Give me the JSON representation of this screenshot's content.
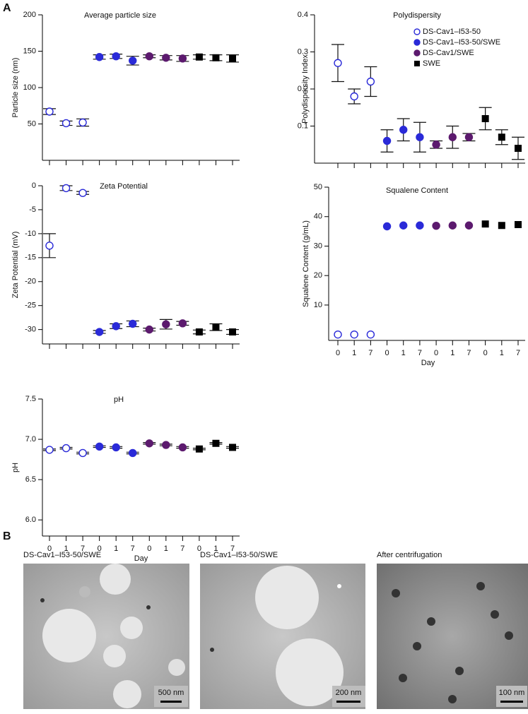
{
  "panel_labels": [
    "A",
    "B"
  ],
  "chart_data": [
    {
      "type": "dot",
      "title": "Average particle size",
      "ylabel": "Particle size (nm)",
      "ylim": [
        0,
        200
      ],
      "yticks": [
        50,
        100,
        150,
        200
      ],
      "series": [
        {
          "color": "#2a2ad8",
          "marker": "open-circle",
          "values": [
            67,
            51,
            52,
            null,
            null,
            null,
            null,
            null,
            null,
            null,
            null,
            null
          ],
          "errors": [
            4,
            3,
            5,
            null,
            null,
            null,
            null,
            null,
            null,
            null,
            null,
            null
          ]
        },
        {
          "color": "#2a2ad8",
          "marker": "circle",
          "values": [
            null,
            null,
            null,
            142,
            143,
            137,
            null,
            null,
            null,
            null,
            null,
            null
          ],
          "errors": [
            null,
            null,
            null,
            3,
            3,
            6,
            null,
            null,
            null,
            null,
            null,
            null
          ]
        },
        {
          "color": "#5c1a6e",
          "marker": "circle",
          "values": [
            null,
            null,
            null,
            null,
            null,
            null,
            143,
            141,
            140,
            null,
            null,
            null
          ],
          "errors": [
            null,
            null,
            null,
            null,
            null,
            null,
            2,
            3,
            4,
            null,
            null,
            null
          ]
        },
        {
          "color": "#000000",
          "marker": "square",
          "values": [
            null,
            null,
            null,
            null,
            null,
            null,
            null,
            null,
            null,
            142,
            141,
            140
          ],
          "errors": [
            null,
            null,
            null,
            null,
            null,
            null,
            null,
            null,
            null,
            3,
            4,
            5
          ]
        }
      ]
    },
    {
      "type": "dot",
      "title": "Polydispersity",
      "ylabel": "Polydispersity Index",
      "ylim": [
        0,
        0.4
      ],
      "yticks": [
        0.1,
        0.2,
        0.3,
        0.4
      ],
      "legend": "upper right",
      "series": [
        {
          "name": "DS-Cav1–I53-50",
          "color": "#2a2ad8",
          "marker": "open-circle",
          "values": [
            0.27,
            0.18,
            0.22,
            null,
            null,
            null,
            null,
            null,
            null,
            null,
            null,
            null
          ],
          "errors": [
            0.05,
            0.02,
            0.04,
            null,
            null,
            null,
            null,
            null,
            null,
            null,
            null,
            null
          ]
        },
        {
          "name": "DS-Cav1–I53-50/SWE",
          "color": "#2a2ad8",
          "marker": "circle",
          "values": [
            null,
            null,
            null,
            0.06,
            0.09,
            0.07,
            null,
            null,
            null,
            null,
            null,
            null
          ],
          "errors": [
            null,
            null,
            null,
            0.03,
            0.03,
            0.04,
            null,
            null,
            null,
            null,
            null,
            null
          ]
        },
        {
          "name": "DS-Cav1/SWE",
          "color": "#5c1a6e",
          "marker": "circle",
          "values": [
            null,
            null,
            null,
            null,
            null,
            null,
            0.05,
            0.07,
            0.07,
            null,
            null,
            null
          ],
          "errors": [
            null,
            null,
            null,
            null,
            null,
            null,
            0.01,
            0.03,
            0.01,
            null,
            null,
            null
          ]
        },
        {
          "name": "SWE",
          "color": "#000000",
          "marker": "square",
          "values": [
            null,
            null,
            null,
            null,
            null,
            null,
            null,
            null,
            null,
            0.12,
            0.07,
            0.04
          ],
          "errors": [
            null,
            null,
            null,
            null,
            null,
            null,
            null,
            null,
            null,
            0.03,
            0.02,
            0.03
          ]
        }
      ]
    },
    {
      "type": "dot",
      "title": "Zeta Potential",
      "ylabel": "Zeta Potential (mV)",
      "ylim": [
        -33,
        0
      ],
      "yticks": [
        0,
        -5,
        -10,
        -15,
        -20,
        -25,
        -30
      ],
      "series": [
        {
          "color": "#2a2ad8",
          "marker": "open-circle",
          "values": [
            -12.5,
            -0.5,
            -1.5,
            null,
            null,
            null,
            null,
            null,
            null,
            null,
            null,
            null
          ],
          "errors": [
            2.5,
            0.5,
            0.3,
            null,
            null,
            null,
            null,
            null,
            null,
            null,
            null,
            null
          ]
        },
        {
          "color": "#2a2ad8",
          "marker": "circle",
          "values": [
            null,
            null,
            null,
            -30.5,
            -29.3,
            -28.8,
            null,
            null,
            null,
            null,
            null,
            null
          ],
          "errors": [
            null,
            null,
            null,
            0.3,
            0.5,
            0.6,
            null,
            null,
            null,
            null,
            null,
            null
          ]
        },
        {
          "color": "#5c1a6e",
          "marker": "circle",
          "values": [
            null,
            null,
            null,
            null,
            null,
            null,
            -30,
            -28.9,
            -28.7,
            null,
            null,
            null
          ],
          "errors": [
            null,
            null,
            null,
            null,
            null,
            null,
            0.3,
            1,
            0.4,
            null,
            null,
            null
          ]
        },
        {
          "color": "#000000",
          "marker": "square",
          "values": [
            null,
            null,
            null,
            null,
            null,
            null,
            null,
            null,
            null,
            -30.5,
            -29.5,
            -30.5
          ],
          "errors": [
            null,
            null,
            null,
            null,
            null,
            null,
            null,
            null,
            null,
            0.4,
            0.7,
            0.5
          ]
        }
      ]
    },
    {
      "type": "dot",
      "title": "Squalene Content",
      "ylabel": "Squalene Content (g/mL)",
      "xlabel": "Day",
      "categories": [
        "0",
        "1",
        "7",
        "0",
        "1",
        "7",
        "0",
        "1",
        "7",
        "0",
        "1",
        "7"
      ],
      "ylim": [
        -2,
        50
      ],
      "yticks": [
        10,
        20,
        30,
        40,
        50
      ],
      "series": [
        {
          "color": "#2a2ad8",
          "marker": "open-circle",
          "values": [
            0,
            0,
            0,
            null,
            null,
            null,
            null,
            null,
            null,
            null,
            null,
            null
          ]
        },
        {
          "color": "#2a2ad8",
          "marker": "circle",
          "values": [
            null,
            null,
            null,
            36.7,
            37,
            37,
            null,
            null,
            null,
            null,
            null,
            null
          ]
        },
        {
          "color": "#5c1a6e",
          "marker": "circle",
          "values": [
            null,
            null,
            null,
            null,
            null,
            null,
            36.9,
            37,
            37,
            null,
            null,
            null
          ]
        },
        {
          "color": "#000000",
          "marker": "square",
          "values": [
            null,
            null,
            null,
            null,
            null,
            null,
            null,
            null,
            null,
            37.5,
            37,
            37.3
          ]
        }
      ]
    },
    {
      "type": "dot",
      "title": "pH",
      "ylabel": "pH",
      "xlabel": "Day",
      "categories": [
        "0",
        "1",
        "7",
        "0",
        "1",
        "7",
        "0",
        "1",
        "7",
        "0",
        "1",
        "7"
      ],
      "ylim": [
        5.8,
        7.5
      ],
      "yticks": [
        {
          "value": 6,
          "label": "6.0"
        },
        6.5,
        {
          "value": 7,
          "label": "7.0"
        },
        7.5
      ],
      "series": [
        {
          "color": "#2a2ad8",
          "marker": "open-circle",
          "values": [
            6.87,
            6.89,
            6.83,
            null,
            null,
            null,
            null,
            null,
            null,
            null,
            null,
            null
          ],
          "errors": [
            0.01,
            0.01,
            0.01,
            null,
            null,
            null,
            null,
            null,
            null,
            null,
            null,
            null
          ]
        },
        {
          "color": "#2a2ad8",
          "marker": "circle",
          "values": [
            null,
            null,
            null,
            6.91,
            6.9,
            6.83,
            null,
            null,
            null,
            null,
            null,
            null
          ],
          "errors": [
            null,
            null,
            null,
            0.01,
            0.01,
            0.01,
            null,
            null,
            null,
            null,
            null,
            null
          ]
        },
        {
          "color": "#5c1a6e",
          "marker": "circle",
          "values": [
            null,
            null,
            null,
            null,
            null,
            null,
            6.95,
            6.93,
            6.9,
            null,
            null,
            null
          ],
          "errors": [
            null,
            null,
            null,
            null,
            null,
            null,
            0.01,
            0.01,
            0.01,
            null,
            null,
            null
          ]
        },
        {
          "color": "#000000",
          "marker": "square",
          "values": [
            null,
            null,
            null,
            null,
            null,
            null,
            null,
            null,
            null,
            6.88,
            6.95,
            6.9
          ],
          "errors": [
            null,
            null,
            null,
            null,
            null,
            null,
            null,
            null,
            null,
            0.01,
            0.01,
            0.01
          ]
        }
      ]
    }
  ],
  "micrographs": [
    {
      "title": "DS-Cav1–I53-50/SWE",
      "scale_bar": "500 nm"
    },
    {
      "title": "DS-Cav1–I53-50/SWE",
      "scale_bar": "200 nm"
    },
    {
      "title": "After centrifugation",
      "scale_bar": "100 nm"
    }
  ]
}
